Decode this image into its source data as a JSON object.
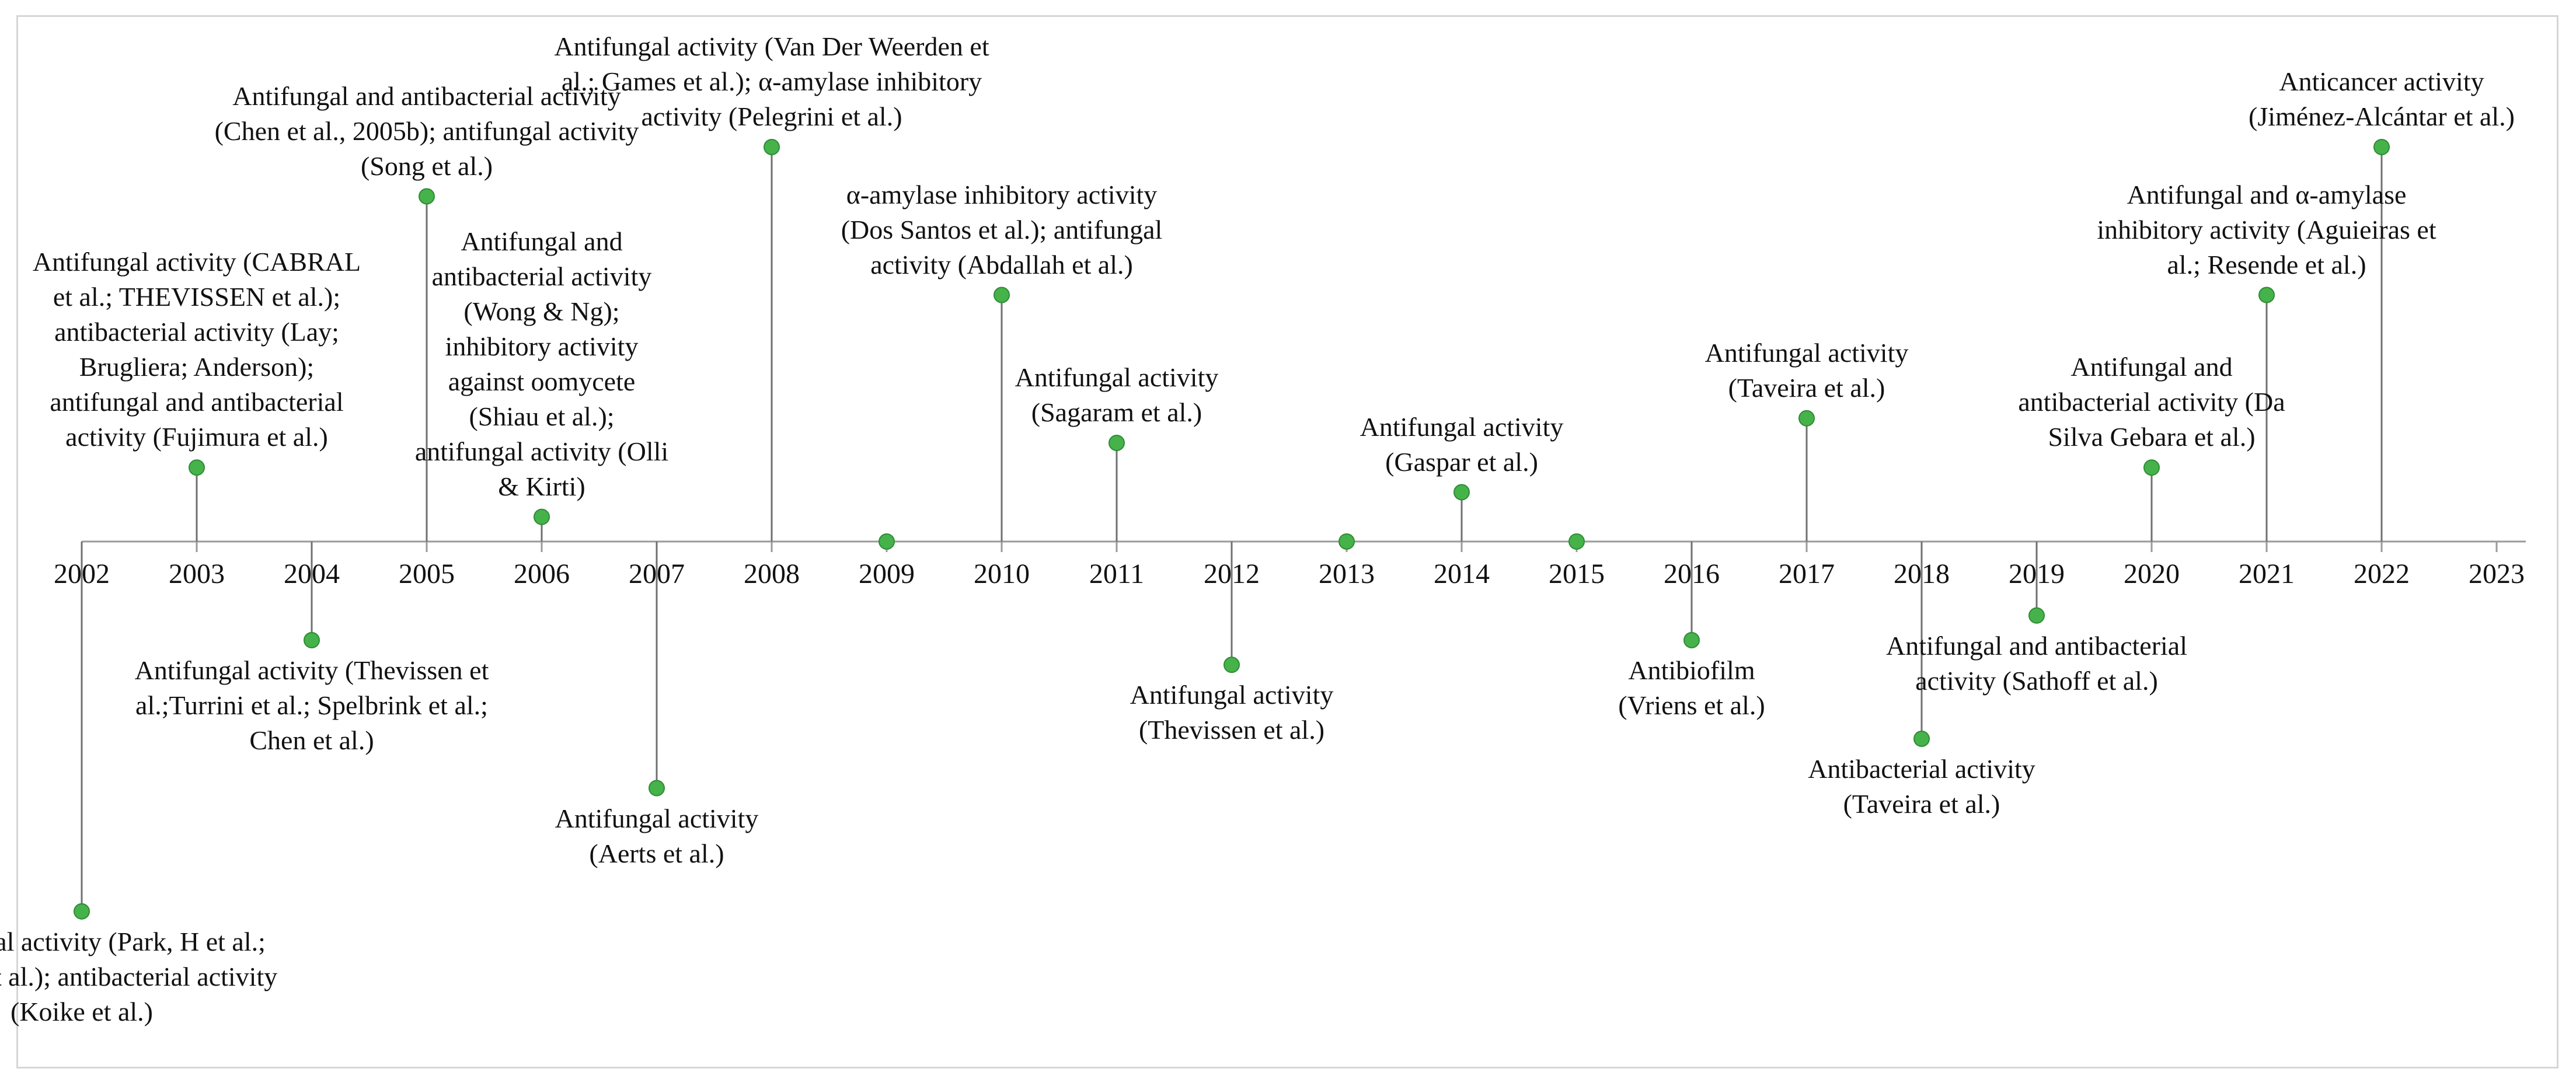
{
  "years": [
    "2002",
    "2003",
    "2004",
    "2005",
    "2006",
    "2007",
    "2008",
    "2009",
    "2010",
    "2011",
    "2012",
    "2013",
    "2014",
    "2015",
    "2016",
    "2017",
    "2018",
    "2019",
    "2020",
    "2021",
    "2022",
    "2023"
  ],
  "colors": {
    "marker": "#45b34a",
    "marker_stroke": "#2e8b36",
    "line": "#9a9a9a",
    "stem": "#707070"
  },
  "events": [
    {
      "year": "2002",
      "side": "below",
      "level": 750,
      "lines": [
        "Antifungal activity (Park, H et al.;",
        "Kanzaki et al.); antibacterial activity",
        "(Koike et al.)"
      ]
    },
    {
      "year": "2003",
      "side": "above",
      "level": 150,
      "lines": [
        "Antifungal activity (CABRAL",
        "et al.; THEVISSEN et al.);",
        "antibacterial activity (Lay;",
        "Brugliera; Anderson);",
        "antifungal and antibacterial",
        "activity (Fujimura et al.)"
      ]
    },
    {
      "year": "2004",
      "side": "below",
      "level": 200,
      "lines": [
        "Antifungal activity (Thevissen et",
        "al.;Turrini et al.; Spelbrink et al.;",
        "Chen et al.)"
      ]
    },
    {
      "year": "2005",
      "side": "above",
      "level": 700,
      "lines": [
        "Antifungal and antibacterial activity",
        "(Chen et al., 2005b);  antifungal activity",
        "(Song et al.)"
      ]
    },
    {
      "year": "2006",
      "side": "above",
      "level": 50,
      "lines": [
        "Antifungal and",
        "antibacterial activity",
        "(Wong & Ng);",
        "inhibitory activity",
        "against oomycete",
        "(Shiau et al.);",
        "antifungal activity (Olli",
        "& Kirti)"
      ]
    },
    {
      "year": "2007",
      "side": "below",
      "level": 500,
      "lines": [
        "Antifungal activity",
        "(Aerts et al.)"
      ]
    },
    {
      "year": "2008",
      "side": "above",
      "level": 800,
      "lines": [
        "Antifungal activity (Van Der Weerden et",
        "al.; Games et al.); α-amylase inhibitory",
        "activity (Pelegrini et al.)"
      ]
    },
    {
      "year": "2009",
      "side": "above",
      "level": 0,
      "lines": []
    },
    {
      "year": "2010",
      "side": "above",
      "level": 500,
      "lines": [
        "α-amylase inhibitory activity",
        "(Dos Santos et al.); antifungal",
        "activity (Abdallah et al.)"
      ]
    },
    {
      "year": "2011",
      "side": "above",
      "level": 200,
      "lines": [
        "Antifungal activity",
        "(Sagaram et al.)"
      ]
    },
    {
      "year": "2012",
      "side": "below",
      "level": 250,
      "lines": [
        "Antifungal activity",
        "(Thevissen et al.)"
      ]
    },
    {
      "year": "2013",
      "side": "above",
      "level": 0,
      "lines": []
    },
    {
      "year": "2014",
      "side": "above",
      "level": 100,
      "lines": [
        "Antifungal activity",
        "(Gaspar et al.)"
      ]
    },
    {
      "year": "2015",
      "side": "above",
      "level": 0,
      "lines": []
    },
    {
      "year": "2016",
      "side": "below",
      "level": 200,
      "lines": [
        "Antibiofilm",
        "(Vriens et al.)"
      ]
    },
    {
      "year": "2017",
      "side": "above",
      "level": 250,
      "lines": [
        "Antifungal activity",
        "(Taveira et al.)"
      ]
    },
    {
      "year": "2018",
      "side": "below",
      "level": 400,
      "lines": [
        "Antibacterial activity",
        "(Taveira et al.)"
      ]
    },
    {
      "year": "2019",
      "side": "below",
      "level": 150,
      "lines": [
        "Antifungal and antibacterial",
        "activity (Sathoff et al.)"
      ]
    },
    {
      "year": "2020",
      "side": "above",
      "level": 150,
      "lines": [
        "Antifungal and",
        "antibacterial activity (Da",
        "Silva Gebara et al.)"
      ]
    },
    {
      "year": "2021",
      "side": "above",
      "level": 500,
      "lines": [
        "Antifungal and α-amylase",
        "inhibitory activity (Aguieiras et",
        "al.; Resende et al.)"
      ]
    },
    {
      "year": "2022",
      "side": "above",
      "level": 800,
      "lines": [
        "Anticancer activity",
        "(Jiménez-Alcántar et al.)"
      ]
    }
  ]
}
